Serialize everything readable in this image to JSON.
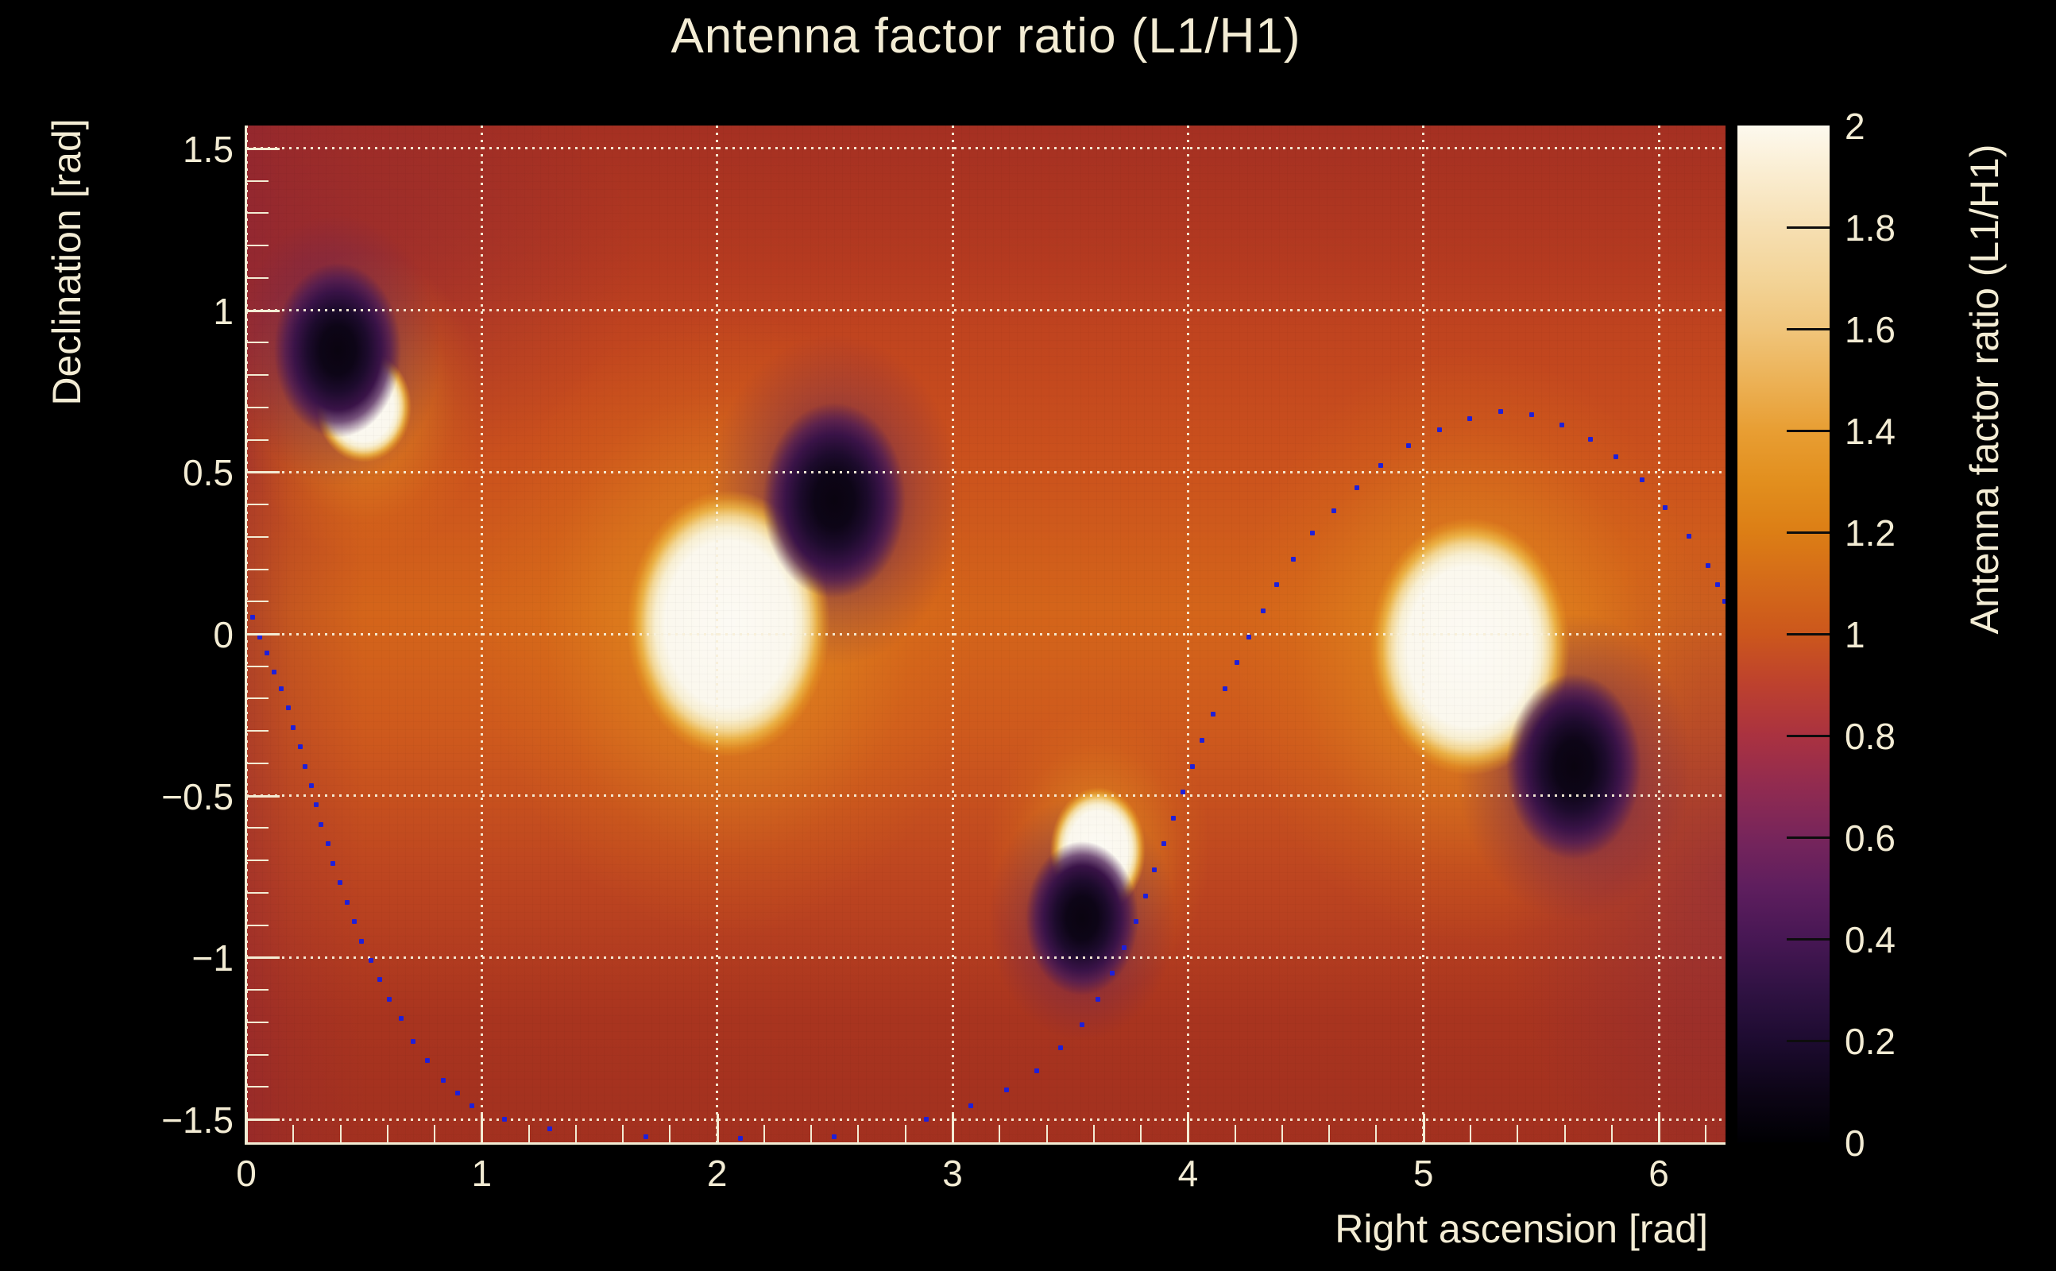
{
  "title": "Antenna factor ratio (L1/H1)",
  "x_axis": {
    "label": "Right ascension [rad]",
    "tick_labels": [
      "0",
      "1",
      "2",
      "3",
      "4",
      "5",
      "6"
    ],
    "tick_values": [
      0,
      1,
      2,
      3,
      4,
      5,
      6
    ],
    "minor_step": 0.2,
    "range": [
      0,
      6.2832
    ]
  },
  "y_axis": {
    "label": "Declination [rad]",
    "tick_labels": [
      "1.5",
      "1",
      "0.5",
      "0",
      "−0.5",
      "−1",
      "−1.5"
    ],
    "tick_values": [
      1.5,
      1,
      0.5,
      0,
      -0.5,
      -1,
      -1.5
    ],
    "minor_step": 0.1,
    "range": [
      -1.5708,
      1.5708
    ]
  },
  "colorbar": {
    "label": "Antenna factor ratio (L1/H1)",
    "tick_labels": [
      "2",
      "1.8",
      "1.6",
      "1.4",
      "1.2",
      "1",
      "0.8",
      "0.6",
      "0.4",
      "0.2",
      "0"
    ],
    "tick_values": [
      2,
      1.8,
      1.6,
      1.4,
      1.2,
      1,
      0.8,
      0.6,
      0.4,
      0.2,
      0
    ],
    "inner_tick_values": [
      1.8,
      1.6,
      1.4,
      1.2,
      1,
      0.8,
      0.6,
      0.4,
      0.2
    ],
    "range": [
      0,
      2
    ]
  },
  "colors": {
    "page_background": "#000000",
    "text": "#f3ecd4",
    "grid": "#f8f0da",
    "axis_line": "#f3ecd4",
    "colorbar_tick": "#0d0d0d",
    "trajectory_dot": "#1f1fd8"
  },
  "chart_data": {
    "type": "heatmap",
    "title": "Antenna factor ratio (L1/H1)",
    "xlabel": "Right ascension [rad]",
    "ylabel": "Declination [rad]",
    "zlabel": "Antenna factor ratio (L1/H1)",
    "x_range": [
      0,
      6.2832
    ],
    "y_range": [
      -1.5708,
      1.5708
    ],
    "z_range": [
      0,
      2
    ],
    "grid": true,
    "x_gridlines": [
      0,
      1,
      2,
      3,
      4,
      5,
      6
    ],
    "y_gridlines": [
      -1.5,
      -1,
      -0.5,
      0,
      0.5,
      1,
      1.5
    ],
    "colormap_stops": [
      {
        "value": 0.0,
        "color": "#000003"
      },
      {
        "value": 0.1,
        "color": "#0d0517"
      },
      {
        "value": 0.2,
        "color": "#1d0b30"
      },
      {
        "value": 0.3,
        "color": "#301243"
      },
      {
        "value": 0.4,
        "color": "#471754"
      },
      {
        "value": 0.5,
        "color": "#5e1e5e"
      },
      {
        "value": 0.6,
        "color": "#77255b"
      },
      {
        "value": 0.7,
        "color": "#912b50"
      },
      {
        "value": 0.8,
        "color": "#aa3240"
      },
      {
        "value": 0.9,
        "color": "#bd412e"
      },
      {
        "value": 1.0,
        "color": "#cc571c"
      },
      {
        "value": 1.1,
        "color": "#d46a19"
      },
      {
        "value": 1.2,
        "color": "#dc7e15"
      },
      {
        "value": 1.3,
        "color": "#e28f1e"
      },
      {
        "value": 1.4,
        "color": "#e89e33"
      },
      {
        "value": 1.5,
        "color": "#ecb257"
      },
      {
        "value": 1.6,
        "color": "#f0c57b"
      },
      {
        "value": 1.7,
        "color": "#f3d498"
      },
      {
        "value": 1.8,
        "color": "#f6dfb2"
      },
      {
        "value": 1.9,
        "color": "#faeccf"
      },
      {
        "value": 2.0,
        "color": "#fdf9ee"
      }
    ],
    "ratio_maxima": [
      {
        "ra": 0.5,
        "dec": 0.7,
        "value": 2,
        "core_rx": 0.14,
        "core_ry": 0.12,
        "halo_r": 0.52
      },
      {
        "ra": 2.05,
        "dec": 0.03,
        "value": 2,
        "core_rx": 0.3,
        "core_ry": 0.285,
        "halo_r": 1.05
      },
      {
        "ra": 3.62,
        "dec": -0.67,
        "value": 2,
        "core_rx": 0.14,
        "core_ry": 0.135,
        "halo_r": 0.48
      },
      {
        "ra": 5.2,
        "dec": -0.04,
        "value": 2,
        "core_rx": 0.295,
        "core_ry": 0.275,
        "halo_r": 1.0
      }
    ],
    "ratio_minima": [
      {
        "ra": 0.39,
        "dec": 0.875,
        "value": 0,
        "core_r": 0.085,
        "halo_r": 0.44
      },
      {
        "ra": 2.5,
        "dec": 0.41,
        "value": 0,
        "core_r": 0.095,
        "halo_r": 0.54
      },
      {
        "ra": 3.55,
        "dec": -0.88,
        "value": 0,
        "core_r": 0.075,
        "halo_r": 0.4
      },
      {
        "ra": 5.64,
        "dec": -0.41,
        "value": 0,
        "core_r": 0.09,
        "halo_r": 0.5
      }
    ],
    "background_field": {
      "vertical_stops": [
        [
          "0%",
          "#b03522"
        ],
        [
          "14%",
          "#ba3d20"
        ],
        [
          "32%",
          "#ca501d"
        ],
        [
          "48%",
          "#d4651a"
        ],
        [
          "60%",
          "#ce591d"
        ],
        [
          "74%",
          "#bd4520"
        ],
        [
          "88%",
          "#ac361f"
        ],
        [
          "100%",
          "#a93420"
        ]
      ],
      "left_edge_tint": "rgba(142,36,50,0.50)",
      "right_edge_tint": "rgba(118,32,72,0.45)",
      "top_left_tint": "rgba(128,30,58,0.50)",
      "top_band_tint": "rgba(146,40,34,0.38)",
      "bottom_band_tint": "rgba(150,42,30,0.35)"
    },
    "trajectory": {
      "marker": "square",
      "color": "#1f1fd8",
      "points": [
        [
          0.03,
          0.05
        ],
        [
          0.06,
          -0.01
        ],
        [
          0.09,
          -0.06
        ],
        [
          0.12,
          -0.12
        ],
        [
          0.15,
          -0.17
        ],
        [
          0.18,
          -0.23
        ],
        [
          0.2,
          -0.29
        ],
        [
          0.23,
          -0.35
        ],
        [
          0.25,
          -0.41
        ],
        [
          0.28,
          -0.47
        ],
        [
          0.3,
          -0.53
        ],
        [
          0.32,
          -0.59
        ],
        [
          0.35,
          -0.65
        ],
        [
          0.37,
          -0.71
        ],
        [
          0.4,
          -0.77
        ],
        [
          0.43,
          -0.83
        ],
        [
          0.46,
          -0.89
        ],
        [
          0.49,
          -0.95
        ],
        [
          0.53,
          -1.01
        ],
        [
          0.57,
          -1.07
        ],
        [
          0.61,
          -1.13
        ],
        [
          0.66,
          -1.19
        ],
        [
          0.71,
          -1.26
        ],
        [
          0.77,
          -1.32
        ],
        [
          0.84,
          -1.38
        ],
        [
          0.9,
          -1.42
        ],
        [
          0.96,
          -1.46
        ],
        [
          1.1,
          -1.5
        ],
        [
          1.29,
          -1.53
        ],
        [
          1.7,
          -1.555
        ],
        [
          2.1,
          -1.56
        ],
        [
          2.5,
          -1.555
        ],
        [
          2.89,
          -1.5
        ],
        [
          3.08,
          -1.46
        ],
        [
          3.23,
          -1.41
        ],
        [
          3.36,
          -1.35
        ],
        [
          3.46,
          -1.28
        ],
        [
          3.55,
          -1.21
        ],
        [
          3.62,
          -1.13
        ],
        [
          3.68,
          -1.05
        ],
        [
          3.73,
          -0.97
        ],
        [
          3.78,
          -0.89
        ],
        [
          3.82,
          -0.81
        ],
        [
          3.86,
          -0.73
        ],
        [
          3.9,
          -0.65
        ],
        [
          3.94,
          -0.57
        ],
        [
          3.98,
          -0.49
        ],
        [
          4.02,
          -0.41
        ],
        [
          4.06,
          -0.33
        ],
        [
          4.11,
          -0.25
        ],
        [
          4.16,
          -0.17
        ],
        [
          4.21,
          -0.09
        ],
        [
          4.26,
          -0.01
        ],
        [
          4.32,
          0.07
        ],
        [
          4.38,
          0.15
        ],
        [
          4.45,
          0.23
        ],
        [
          4.53,
          0.31
        ],
        [
          4.62,
          0.38
        ],
        [
          4.72,
          0.45
        ],
        [
          4.82,
          0.52
        ],
        [
          4.94,
          0.58
        ],
        [
          5.07,
          0.63
        ],
        [
          5.2,
          0.665
        ],
        [
          5.33,
          0.685
        ],
        [
          5.46,
          0.675
        ],
        [
          5.59,
          0.645
        ],
        [
          5.71,
          0.6
        ],
        [
          5.82,
          0.545
        ],
        [
          5.93,
          0.475
        ],
        [
          6.03,
          0.39
        ],
        [
          6.13,
          0.3
        ],
        [
          6.21,
          0.21
        ],
        [
          6.25,
          0.15
        ],
        [
          6.28,
          0.1
        ]
      ]
    }
  }
}
